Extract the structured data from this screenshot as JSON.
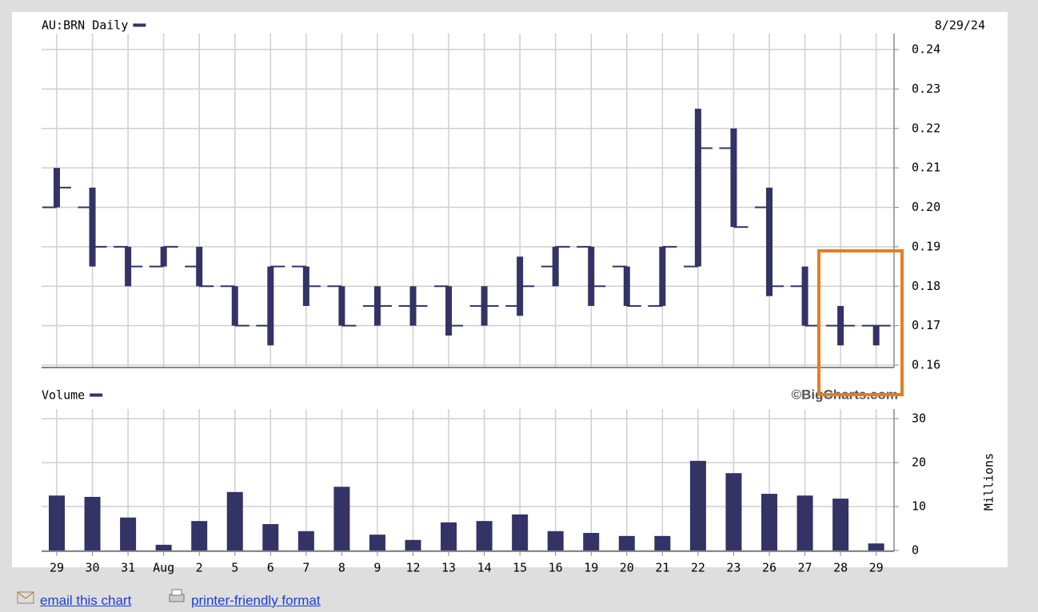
{
  "chart_data": [
    {
      "type": "ohlc",
      "title": "AU:BRN Daily",
      "date": "8/29/24",
      "color": "#333366",
      "open": [
        0.2,
        0.2,
        0.19,
        0.185,
        0.185,
        0.18,
        0.17,
        0.185,
        0.18,
        0.175,
        0.175,
        0.18,
        0.175,
        0.175,
        0.185,
        0.19,
        0.185,
        0.175,
        0.185,
        0.215,
        0.2,
        0.18,
        0.17,
        0.17
      ],
      "high": [
        0.21,
        0.205,
        0.19,
        0.19,
        0.19,
        0.18,
        0.185,
        0.185,
        0.18,
        0.18,
        0.18,
        0.18,
        0.18,
        0.1875,
        0.19,
        0.19,
        0.185,
        0.19,
        0.225,
        0.22,
        0.205,
        0.185,
        0.175,
        0.17
      ],
      "low": [
        0.2,
        0.185,
        0.18,
        0.185,
        0.18,
        0.17,
        0.165,
        0.175,
        0.17,
        0.17,
        0.17,
        0.1675,
        0.17,
        0.1725,
        0.18,
        0.175,
        0.175,
        0.175,
        0.185,
        0.195,
        0.1775,
        0.17,
        0.165,
        0.165
      ],
      "close": [
        0.205,
        0.19,
        0.185,
        0.19,
        0.18,
        0.17,
        0.185,
        0.18,
        0.17,
        0.175,
        0.175,
        0.17,
        0.175,
        0.18,
        0.19,
        0.18,
        0.175,
        0.19,
        0.215,
        0.195,
        0.18,
        0.17,
        0.17,
        0.17
      ],
      "ylim": [
        0.16,
        0.24
      ],
      "yticks": [
        0.16,
        0.17,
        0.18,
        0.19,
        {
          "value": 0.2,
          "label": "0.20"
        },
        0.21,
        0.22,
        0.23,
        0.24
      ],
      "grid": true
    },
    {
      "type": "bar",
      "title": "Volume",
      "y_label": "Millions",
      "credit": "©BigCharts.com",
      "color": "#333366",
      "categories": [
        "29",
        "30",
        "31",
        "Aug",
        "2",
        "5",
        "6",
        "7",
        "8",
        "9",
        "12",
        "13",
        "14",
        "15",
        "16",
        "19",
        "20",
        "21",
        "22",
        "23",
        "26",
        "27",
        "28",
        "29"
      ],
      "values": [
        12.5,
        12.2,
        7.5,
        1.3,
        6.7,
        13.3,
        6.0,
        4.4,
        14.5,
        3.6,
        2.4,
        6.4,
        6.7,
        8.2,
        4.4,
        4.0,
        3.3,
        3.3,
        20.4,
        17.6,
        12.9,
        12.5,
        11.8,
        1.6
      ],
      "ylim": [
        0,
        30
      ],
      "yticks": [
        0,
        10,
        20,
        30
      ],
      "grid": true
    }
  ],
  "links": {
    "email": "email this chart",
    "print": "printer-friendly format"
  }
}
